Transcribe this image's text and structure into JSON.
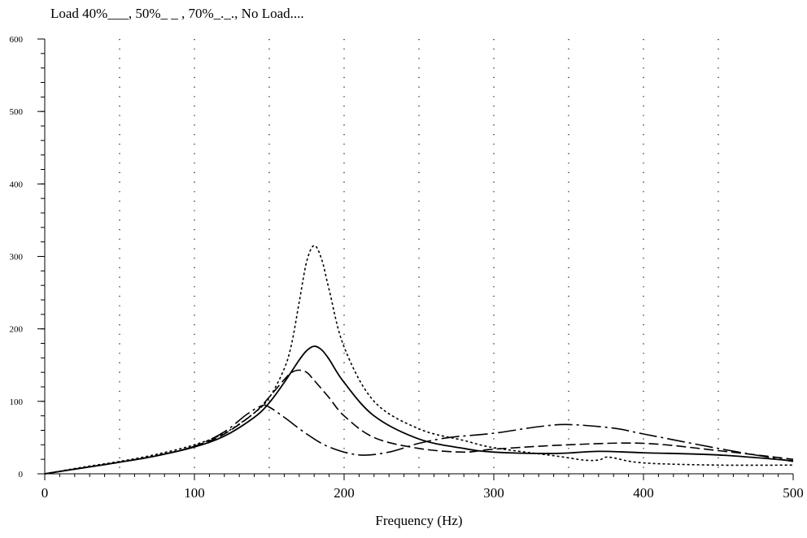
{
  "chart_data": {
    "type": "line",
    "title": "Load 40%___, 50%_ _ , 70%_._., No Load....",
    "xlabel": "Frequency (Hz)",
    "ylabel": "",
    "xlim": [
      0,
      500
    ],
    "ylim": [
      0,
      600
    ],
    "x_ticks": [
      0,
      100,
      200,
      300,
      400,
      500
    ],
    "y_ticks": [
      0,
      100,
      200,
      300,
      400,
      500,
      600
    ],
    "x_minor_step": 10,
    "y_minor_step": 20,
    "grid": "vertical dotted lines every 50",
    "legend": "in title text",
    "series": [
      {
        "name": "Load 40%",
        "style": "solid",
        "x": [
          0,
          25,
          50,
          75,
          100,
          120,
          140,
          150,
          160,
          170,
          175,
          180,
          185,
          190,
          200,
          220,
          250,
          280,
          300,
          340,
          370,
          400,
          450,
          500
        ],
        "y": [
          0,
          8,
          16,
          25,
          37,
          52,
          78,
          98,
          126,
          157,
          170,
          176,
          171,
          158,
          126,
          80,
          48,
          35,
          30,
          28,
          31,
          29,
          26,
          18
        ]
      },
      {
        "name": "50%",
        "style": "dashed",
        "x": [
          0,
          25,
          50,
          75,
          100,
          120,
          140,
          150,
          160,
          165,
          170,
          175,
          180,
          190,
          200,
          220,
          250,
          280,
          300,
          350,
          400,
          450,
          500
        ],
        "y": [
          0,
          8,
          16,
          25,
          38,
          55,
          84,
          106,
          130,
          140,
          143,
          140,
          129,
          105,
          80,
          50,
          35,
          30,
          34,
          40,
          42,
          32,
          20
        ]
      },
      {
        "name": "70%",
        "style": "dash-dot",
        "x": [
          0,
          25,
          50,
          75,
          100,
          120,
          135,
          145,
          150,
          160,
          175,
          190,
          210,
          230,
          250,
          270,
          300,
          330,
          350,
          380,
          400,
          450,
          500
        ],
        "y": [
          0,
          8,
          16,
          25,
          38,
          58,
          82,
          94,
          92,
          78,
          55,
          37,
          26,
          30,
          42,
          50,
          56,
          65,
          68,
          63,
          55,
          35,
          17
        ]
      },
      {
        "name": "No Load",
        "style": "dotted",
        "x": [
          0,
          25,
          50,
          75,
          100,
          120,
          140,
          150,
          160,
          165,
          170,
          175,
          180,
          185,
          190,
          200,
          220,
          250,
          280,
          300,
          340,
          360,
          370,
          375,
          380,
          400,
          450,
          500
        ],
        "y": [
          0,
          9,
          17,
          27,
          40,
          56,
          84,
          105,
          145,
          180,
          237,
          293,
          315,
          296,
          254,
          175,
          100,
          62,
          46,
          36,
          25,
          19,
          19,
          23,
          22,
          15,
          12,
          12
        ]
      }
    ]
  }
}
